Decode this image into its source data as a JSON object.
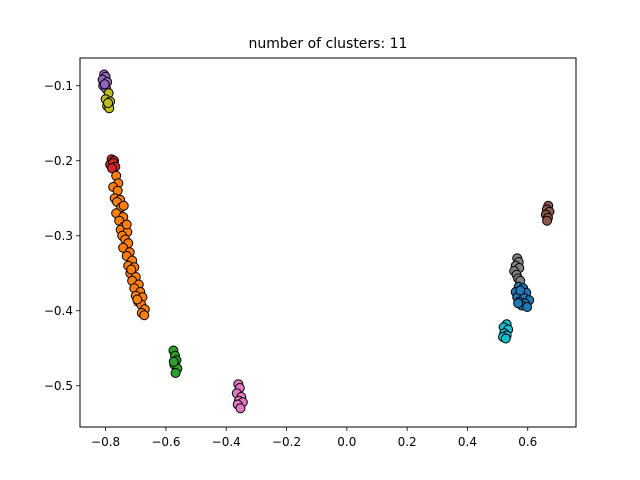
{
  "chart_data": {
    "type": "scatter",
    "title": "number of clusters: 11",
    "xlabel": "",
    "ylabel": "",
    "xlim": [
      -0.885,
      0.76
    ],
    "ylim": [
      -0.555,
      -0.063
    ],
    "xticks": [
      -0.8,
      -0.6,
      -0.4,
      -0.2,
      0.0,
      0.2,
      0.4,
      0.6
    ],
    "xtick_labels": [
      "−0.8",
      "−0.6",
      "−0.4",
      "−0.2",
      "0.0",
      "0.2",
      "0.4",
      "0.6"
    ],
    "yticks": [
      -0.1,
      -0.2,
      -0.3,
      -0.4,
      -0.5
    ],
    "ytick_labels": [
      "−0.1",
      "−0.2",
      "−0.3",
      "−0.4",
      "−0.5"
    ],
    "grid": false,
    "legend": "none",
    "series": [
      {
        "color": "#9467bd",
        "points": [
          [
            -0.805,
            -0.085
          ],
          [
            -0.8,
            -0.088
          ],
          [
            -0.81,
            -0.092
          ],
          [
            -0.795,
            -0.095
          ],
          [
            -0.808,
            -0.1
          ],
          [
            -0.798,
            -0.104
          ],
          [
            -0.803,
            -0.098
          ]
        ]
      },
      {
        "color": "#bcbd22",
        "points": [
          [
            -0.79,
            -0.11
          ],
          [
            -0.8,
            -0.118
          ],
          [
            -0.785,
            -0.121
          ],
          [
            -0.795,
            -0.127
          ],
          [
            -0.788,
            -0.13
          ],
          [
            -0.792,
            -0.123
          ]
        ]
      },
      {
        "color": "#d62728",
        "points": [
          [
            -0.78,
            -0.198
          ],
          [
            -0.772,
            -0.2
          ],
          [
            -0.785,
            -0.205
          ],
          [
            -0.775,
            -0.203
          ],
          [
            -0.768,
            -0.208
          ],
          [
            -0.779,
            -0.21
          ]
        ]
      },
      {
        "color": "#ff7f0e",
        "points": [
          [
            -0.765,
            -0.22
          ],
          [
            -0.758,
            -0.23
          ],
          [
            -0.775,
            -0.235
          ],
          [
            -0.76,
            -0.24
          ],
          [
            -0.77,
            -0.25
          ],
          [
            -0.752,
            -0.252
          ],
          [
            -0.762,
            -0.255
          ],
          [
            -0.748,
            -0.262
          ],
          [
            -0.765,
            -0.27
          ],
          [
            -0.742,
            -0.275
          ],
          [
            -0.755,
            -0.28
          ],
          [
            -0.74,
            -0.288
          ],
          [
            -0.75,
            -0.292
          ],
          [
            -0.728,
            -0.295
          ],
          [
            -0.745,
            -0.3
          ],
          [
            -0.735,
            -0.305
          ],
          [
            -0.725,
            -0.31
          ],
          [
            -0.742,
            -0.316
          ],
          [
            -0.72,
            -0.322
          ],
          [
            -0.73,
            -0.327
          ],
          [
            -0.712,
            -0.333
          ],
          [
            -0.725,
            -0.34
          ],
          [
            -0.705,
            -0.342
          ],
          [
            -0.718,
            -0.35
          ],
          [
            -0.7,
            -0.355
          ],
          [
            -0.712,
            -0.36
          ],
          [
            -0.69,
            -0.365
          ],
          [
            -0.705,
            -0.37
          ],
          [
            -0.685,
            -0.375
          ],
          [
            -0.7,
            -0.38
          ],
          [
            -0.678,
            -0.382
          ],
          [
            -0.692,
            -0.388
          ],
          [
            -0.682,
            -0.392
          ],
          [
            -0.67,
            -0.398
          ],
          [
            -0.68,
            -0.403
          ],
          [
            -0.672,
            -0.406
          ],
          [
            -0.695,
            -0.385
          ],
          [
            -0.715,
            -0.345
          ],
          [
            -0.74,
            -0.26
          ],
          [
            -0.73,
            -0.285
          ]
        ]
      },
      {
        "color": "#2ca02c",
        "points": [
          [
            -0.575,
            -0.453
          ],
          [
            -0.57,
            -0.46
          ],
          [
            -0.565,
            -0.466
          ],
          [
            -0.572,
            -0.472
          ],
          [
            -0.562,
            -0.477
          ],
          [
            -0.568,
            -0.483
          ],
          [
            -0.574,
            -0.468
          ]
        ]
      },
      {
        "color": "#e377c2",
        "points": [
          [
            -0.36,
            -0.498
          ],
          [
            -0.355,
            -0.503
          ],
          [
            -0.365,
            -0.51
          ],
          [
            -0.35,
            -0.515
          ],
          [
            -0.358,
            -0.52
          ],
          [
            -0.345,
            -0.522
          ],
          [
            -0.362,
            -0.525
          ],
          [
            -0.353,
            -0.53
          ]
        ]
      },
      {
        "color": "#8c564b",
        "points": [
          [
            0.668,
            -0.26
          ],
          [
            0.663,
            -0.265
          ],
          [
            0.672,
            -0.268
          ],
          [
            0.66,
            -0.272
          ],
          [
            0.667,
            -0.276
          ],
          [
            0.664,
            -0.28
          ]
        ]
      },
      {
        "color": "#7f7f7f",
        "points": [
          [
            0.565,
            -0.33
          ],
          [
            0.57,
            -0.335
          ],
          [
            0.56,
            -0.34
          ],
          [
            0.572,
            -0.343
          ],
          [
            0.555,
            -0.347
          ],
          [
            0.563,
            -0.352
          ],
          [
            0.568,
            -0.357
          ],
          [
            0.575,
            -0.36
          ]
        ]
      },
      {
        "color": "#1f77b4",
        "points": [
          [
            0.57,
            -0.368
          ],
          [
            0.585,
            -0.37
          ],
          [
            0.56,
            -0.375
          ],
          [
            0.578,
            -0.378
          ],
          [
            0.595,
            -0.376
          ],
          [
            0.565,
            -0.382
          ],
          [
            0.588,
            -0.383
          ],
          [
            0.605,
            -0.386
          ],
          [
            0.572,
            -0.388
          ],
          [
            0.59,
            -0.39
          ],
          [
            0.58,
            -0.393
          ],
          [
            0.598,
            -0.395
          ],
          [
            0.568,
            -0.39
          ],
          [
            0.575,
            -0.373
          ]
        ]
      },
      {
        "color": "#17becf",
        "points": [
          [
            0.53,
            -0.418
          ],
          [
            0.52,
            -0.422
          ],
          [
            0.535,
            -0.425
          ],
          [
            0.522,
            -0.43
          ],
          [
            0.53,
            -0.433
          ],
          [
            0.518,
            -0.435
          ],
          [
            0.527,
            -0.437
          ]
        ]
      }
    ]
  }
}
